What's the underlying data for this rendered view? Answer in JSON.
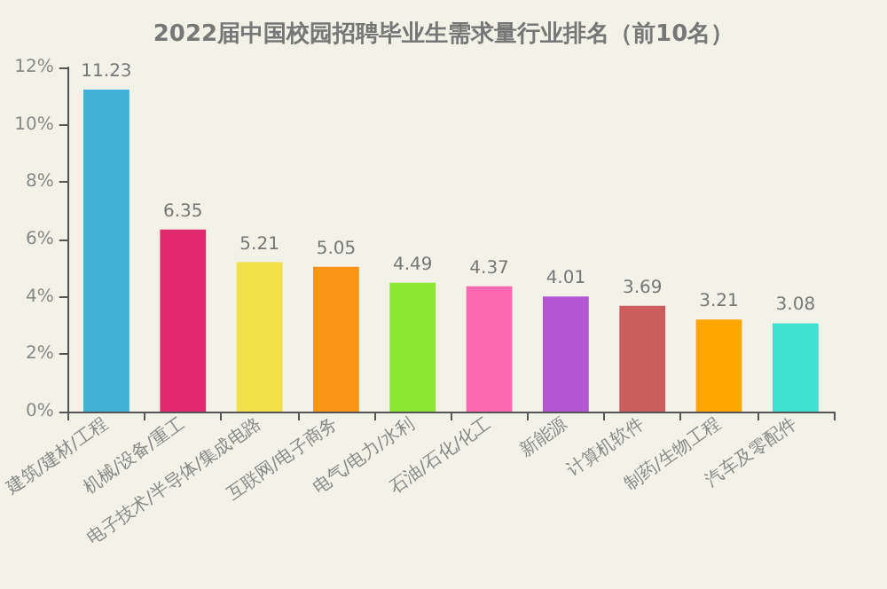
{
  "chart_data": {
    "type": "bar",
    "title": "2022届中国校园招聘毕业生需求量行业排名（前10名）",
    "categories": [
      "建筑/建材/工程",
      "机械/设备/重工",
      "电子技术/半导体/集成电路",
      "互联网/电子商务",
      "电气/电力/水利",
      "石油/石化/化工",
      "新能源",
      "计算机软件",
      "制药/生物工程",
      "汽车及零配件"
    ],
    "values": [
      11.23,
      6.35,
      5.21,
      5.05,
      4.49,
      4.37,
      4.01,
      3.69,
      3.21,
      3.08
    ],
    "colors": [
      "#3fb1d6",
      "#e2296e",
      "#f2e04a",
      "#fb9516",
      "#8ce833",
      "#ff69b4",
      "#b455d4",
      "#cd5c5c",
      "#ffa600",
      "#40e0d0"
    ],
    "ylim": [
      0,
      12
    ],
    "yticks": [
      {
        "value": 0,
        "label": "0%"
      },
      {
        "value": 2,
        "label": "2%"
      },
      {
        "value": 4,
        "label": "4%"
      },
      {
        "value": 6,
        "label": "6%"
      },
      {
        "value": 8,
        "label": "8%"
      },
      {
        "value": 10,
        "label": "10%"
      },
      {
        "value": 12,
        "label": "12%"
      }
    ],
    "data_labels": true
  }
}
